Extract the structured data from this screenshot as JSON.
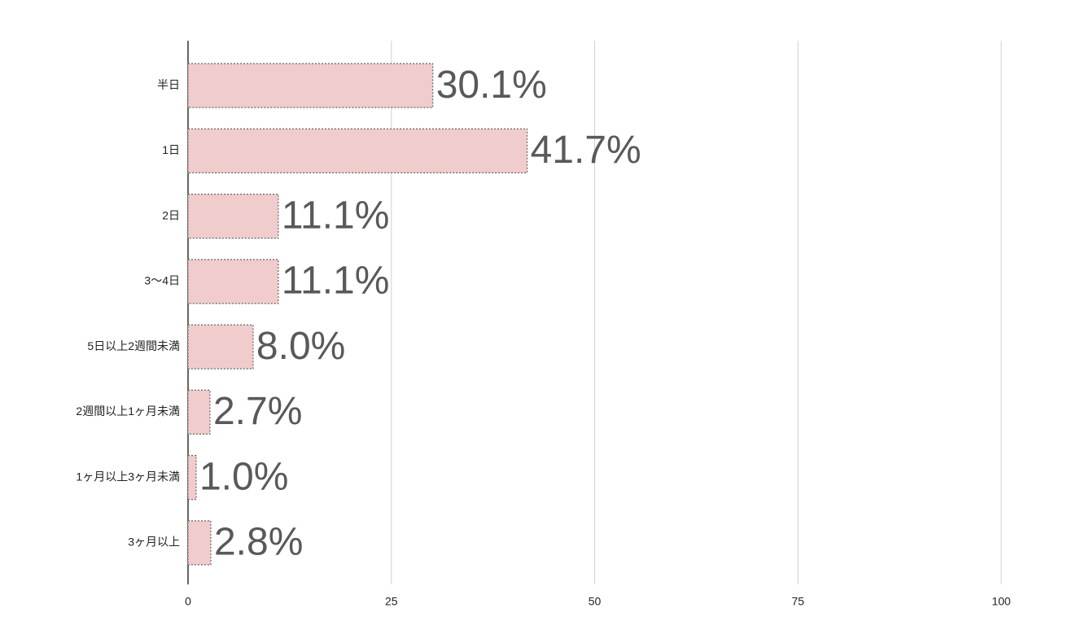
{
  "chart_data": {
    "type": "barh",
    "categories": [
      "半日",
      "1日",
      "2日",
      "3〜4日",
      "5日以上2週間未満",
      "2週間以上1ヶ月未満",
      "1ヶ月以上3ヶ月未満",
      "3ヶ月以上"
    ],
    "values": [
      30.1,
      41.7,
      11.1,
      11.1,
      8.0,
      2.7,
      1.0,
      2.8
    ],
    "value_labels": [
      "30.1%",
      "41.7%",
      "11.1%",
      "11.1%",
      "8.0%",
      "2.7%",
      "1.0%",
      "2.8%"
    ],
    "color": "#f0cccc",
    "xlim": [
      0,
      100
    ],
    "xticks": [
      0,
      25,
      50,
      75,
      100
    ],
    "grid": true
  }
}
